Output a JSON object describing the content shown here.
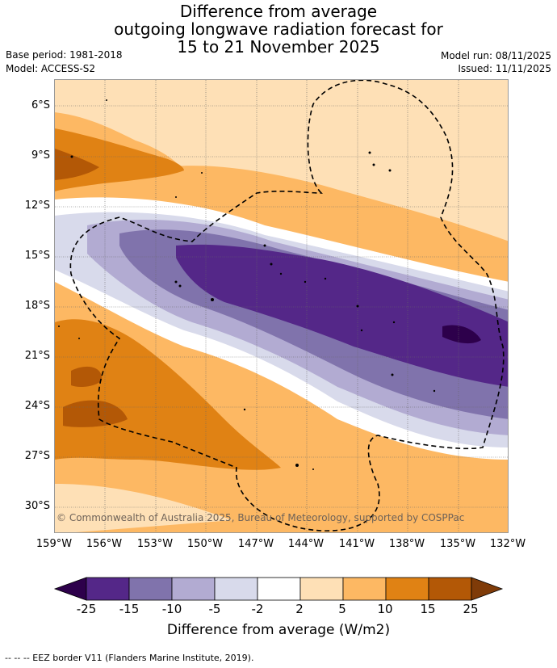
{
  "title": {
    "line1": "Difference from average",
    "line2": "outgoing longwave radiation forecast for",
    "line3": "15 to 21 November 2025"
  },
  "meta": {
    "base_period": "Base period: 1981-2018",
    "model": "Model: ACCESS-S2",
    "model_run": "Model run: 08/11/2025",
    "issued": "Issued: 11/11/2025"
  },
  "map": {
    "lat_labels": [
      "6°S",
      "9°S",
      "12°S",
      "15°S",
      "18°S",
      "21°S",
      "24°S",
      "27°S",
      "30°S"
    ],
    "lon_labels": [
      "159°W",
      "156°W",
      "153°W",
      "150°W",
      "147°W",
      "144°W",
      "141°W",
      "138°W",
      "135°W",
      "132°W"
    ],
    "copyright": "© Commonwealth of Australia 2025, Bureau of Meteorology, supported by COSPPac"
  },
  "colorbar": {
    "ticks": [
      "-25",
      "-15",
      "-10",
      "-5",
      "-2",
      "2",
      "5",
      "10",
      "15",
      "25"
    ],
    "colors": [
      "#2d004b",
      "#542788",
      "#8073ac",
      "#b2abd2",
      "#d8daeb",
      "#ffffff",
      "#fee0b6",
      "#fdb863",
      "#e08214",
      "#b35806",
      "#7f3b08"
    ],
    "title": "Difference from average (W/m2)"
  },
  "footer": "--  --  -- EEZ border V11 (Flanders Marine Institute, 2019)."
}
